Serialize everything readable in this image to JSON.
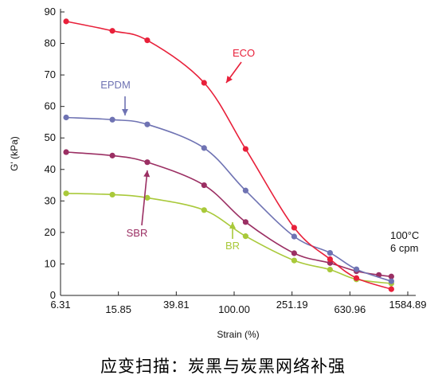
{
  "chart_data": {
    "type": "line",
    "xlabel": "Strain (%)",
    "ylabel": "G' (kPa)",
    "x_scale": "log",
    "xlim": [
      6.31,
      1584.89
    ],
    "ylim": [
      0,
      90
    ],
    "x_ticks": [
      6.31,
      15.85,
      39.81,
      100.0,
      251.19,
      630.96,
      1584.89
    ],
    "x_tick_labels": [
      "6.31",
      "15.85",
      "39.81",
      "100.00",
      "251.19",
      "630.96",
      "1584.89"
    ],
    "y_ticks": [
      0,
      10,
      20,
      30,
      40,
      50,
      60,
      70,
      80,
      90
    ],
    "y_tick_labels": [
      "0",
      "10",
      "20",
      "30",
      "40",
      "50",
      "60",
      "70",
      "80",
      "90"
    ],
    "grid": false,
    "annotation": [
      "100°C",
      "6 cpm"
    ],
    "series": [
      {
        "name": "ECO",
        "color": "#e8203a",
        "x": [
          6.9,
          14.4,
          25.1,
          62.0,
          120.0,
          260.0,
          460.0,
          700.0,
          1220.0
        ],
        "y": [
          87.0,
          84.0,
          81.0,
          67.5,
          46.5,
          21.5,
          11.5,
          5.5,
          2.0
        ]
      },
      {
        "name": "EPDM",
        "color": "#6f73b3",
        "x": [
          6.9,
          14.4,
          25.1,
          62.0,
          120.0,
          260.0,
          460.0,
          700.0,
          1220.0
        ],
        "y": [
          56.5,
          55.8,
          54.3,
          46.8,
          33.3,
          18.7,
          13.5,
          8.3,
          4.5
        ]
      },
      {
        "name": "SBR",
        "color": "#9b2f63",
        "x": [
          6.9,
          14.4,
          25.1,
          62.0,
          120.0,
          260.0,
          460.0,
          700.0,
          1000.0,
          1220.0
        ],
        "y": [
          45.5,
          44.4,
          42.3,
          35.0,
          23.3,
          13.4,
          10.3,
          7.7,
          6.5,
          6.0
        ]
      },
      {
        "name": "BR",
        "color": "#a9c93a",
        "x": [
          6.9,
          14.4,
          25.1,
          62.0,
          120.0,
          260.0,
          460.0,
          700.0,
          1220.0
        ],
        "y": [
          32.4,
          32.0,
          31.0,
          27.1,
          18.8,
          11.1,
          8.2,
          5.1,
          3.8
        ]
      }
    ]
  },
  "caption": "应变扫描：炭黑与炭黑网络补强"
}
